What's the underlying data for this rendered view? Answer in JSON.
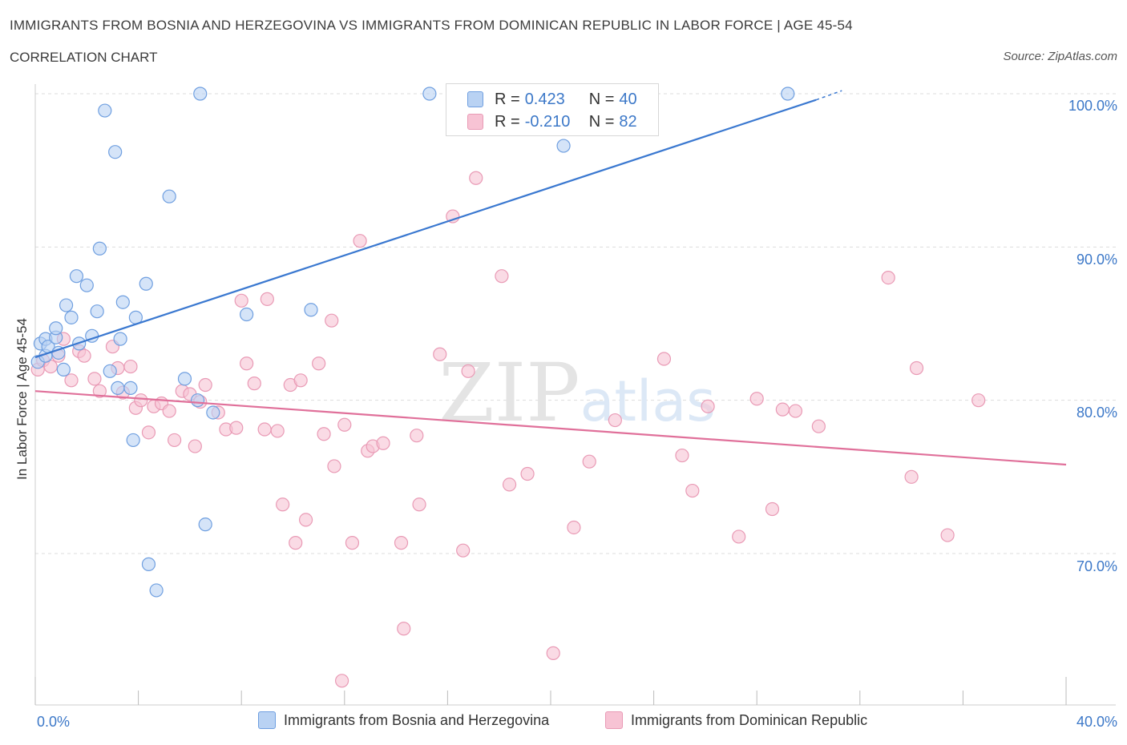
{
  "header": {
    "title": "IMMIGRANTS FROM BOSNIA AND HERZEGOVINA VS IMMIGRANTS FROM DOMINICAN REPUBLIC IN LABOR FORCE | AGE 45-54",
    "subtitle": "CORRELATION CHART",
    "source": "Source: ZipAtlas.com"
  },
  "watermark": "ZIPatlas",
  "legend_top": {
    "rows": [
      {
        "r_label": "R =",
        "r_value": "0.423",
        "n_label": "N =",
        "n_value": "40"
      },
      {
        "r_label": "R =",
        "r_value": "-0.210",
        "n_label": "N =",
        "n_value": "82"
      }
    ]
  },
  "legend_bottom": {
    "series1": "Immigrants from Bosnia and Herzegovina",
    "series2": "Immigrants from Dominican Republic"
  },
  "axis": {
    "ylabel": "In Labor Force | Age 45-54",
    "x_min_label": "0.0%",
    "x_max_label": "40.0%",
    "y_ticks": [
      "100.0%",
      "90.0%",
      "80.0%",
      "70.0%"
    ]
  },
  "colors": {
    "blue_fill": "#b9d2f3",
    "blue_stroke": "#6f9fe0",
    "blue_line": "#3a78d0",
    "pink_fill": "#f7c3d4",
    "pink_stroke": "#e99ab5",
    "pink_line": "#e0709a",
    "tick_text": "#3c78c8"
  },
  "chart_data": {
    "type": "scatter",
    "title": "IMMIGRANTS FROM BOSNIA AND HERZEGOVINA VS IMMIGRANTS FROM DOMINICAN REPUBLIC IN LABOR FORCE | AGE 45-54",
    "xlabel": "",
    "ylabel": "In Labor Force | Age 45-54",
    "xlim": [
      0,
      40
    ],
    "ylim": [
      60,
      102
    ],
    "y_gridlines": [
      70,
      80,
      90,
      100
    ],
    "series": [
      {
        "name": "Immigrants from Bosnia and Herzegovina",
        "R": 0.423,
        "N": 40,
        "trend": {
          "x": [
            0,
            30.3
          ],
          "y": [
            82.8,
            99.6
          ],
          "dashed_to": {
            "x": 31.3,
            "y": 100.2
          }
        },
        "points": [
          [
            0.1,
            82.5
          ],
          [
            0.2,
            83.7
          ],
          [
            0.4,
            84.0
          ],
          [
            0.4,
            82.9
          ],
          [
            0.5,
            83.5
          ],
          [
            0.8,
            84.1
          ],
          [
            0.8,
            84.7
          ],
          [
            0.9,
            83.1
          ],
          [
            1.1,
            82.0
          ],
          [
            1.2,
            86.2
          ],
          [
            1.4,
            85.4
          ],
          [
            1.6,
            88.1
          ],
          [
            1.7,
            83.7
          ],
          [
            2.0,
            87.5
          ],
          [
            2.2,
            84.2
          ],
          [
            2.4,
            85.8
          ],
          [
            2.5,
            89.9
          ],
          [
            2.7,
            98.9
          ],
          [
            2.9,
            81.9
          ],
          [
            3.1,
            96.2
          ],
          [
            3.2,
            80.8
          ],
          [
            3.3,
            84.0
          ],
          [
            3.4,
            86.4
          ],
          [
            3.7,
            80.8
          ],
          [
            3.8,
            77.4
          ],
          [
            3.9,
            85.4
          ],
          [
            4.3,
            87.6
          ],
          [
            4.4,
            69.3
          ],
          [
            4.7,
            67.6
          ],
          [
            5.2,
            93.3
          ],
          [
            5.8,
            81.4
          ],
          [
            6.3,
            80.0
          ],
          [
            6.4,
            100.0
          ],
          [
            6.6,
            71.9
          ],
          [
            6.9,
            79.2
          ],
          [
            8.2,
            85.6
          ],
          [
            10.7,
            85.9
          ],
          [
            15.3,
            100.0
          ],
          [
            20.5,
            96.6
          ],
          [
            29.2,
            100.0
          ]
        ]
      },
      {
        "name": "Immigrants from Dominican Republic",
        "R": -0.21,
        "N": 82,
        "trend": {
          "x": [
            0,
            40
          ],
          "y": [
            80.6,
            75.8
          ]
        },
        "points": [
          [
            0.1,
            82.0
          ],
          [
            0.3,
            82.6
          ],
          [
            0.6,
            82.2
          ],
          [
            0.9,
            82.9
          ],
          [
            1.1,
            84.0
          ],
          [
            1.4,
            81.3
          ],
          [
            1.7,
            83.2
          ],
          [
            1.9,
            82.9
          ],
          [
            2.3,
            81.4
          ],
          [
            2.5,
            80.6
          ],
          [
            3.0,
            83.5
          ],
          [
            3.2,
            82.1
          ],
          [
            3.4,
            80.5
          ],
          [
            3.7,
            82.2
          ],
          [
            3.9,
            79.5
          ],
          [
            4.1,
            80.0
          ],
          [
            4.4,
            77.9
          ],
          [
            4.6,
            79.6
          ],
          [
            4.9,
            79.8
          ],
          [
            5.2,
            79.3
          ],
          [
            5.4,
            77.4
          ],
          [
            5.7,
            80.6
          ],
          [
            6.0,
            80.4
          ],
          [
            6.2,
            77.0
          ],
          [
            6.4,
            79.9
          ],
          [
            6.6,
            81.0
          ],
          [
            7.1,
            79.2
          ],
          [
            7.4,
            78.1
          ],
          [
            7.8,
            78.2
          ],
          [
            8.0,
            86.5
          ],
          [
            8.2,
            82.4
          ],
          [
            8.5,
            81.1
          ],
          [
            8.9,
            78.1
          ],
          [
            9.0,
            86.6
          ],
          [
            9.4,
            78.0
          ],
          [
            9.6,
            73.2
          ],
          [
            9.9,
            81.0
          ],
          [
            10.1,
            70.7
          ],
          [
            10.3,
            81.3
          ],
          [
            10.5,
            72.2
          ],
          [
            11.0,
            82.4
          ],
          [
            11.2,
            77.8
          ],
          [
            11.5,
            85.2
          ],
          [
            11.6,
            75.7
          ],
          [
            11.9,
            61.7
          ],
          [
            12.0,
            78.4
          ],
          [
            12.3,
            70.7
          ],
          [
            12.6,
            90.4
          ],
          [
            12.9,
            76.7
          ],
          [
            13.1,
            77.0
          ],
          [
            13.5,
            77.2
          ],
          [
            14.2,
            70.7
          ],
          [
            14.3,
            65.1
          ],
          [
            14.8,
            77.7
          ],
          [
            14.9,
            73.2
          ],
          [
            15.7,
            83.0
          ],
          [
            16.2,
            92.0
          ],
          [
            16.6,
            70.2
          ],
          [
            16.8,
            81.9
          ],
          [
            17.1,
            94.5
          ],
          [
            18.1,
            88.1
          ],
          [
            18.4,
            74.5
          ],
          [
            19.1,
            75.2
          ],
          [
            20.1,
            63.5
          ],
          [
            20.9,
            71.7
          ],
          [
            21.5,
            76.0
          ],
          [
            22.5,
            78.7
          ],
          [
            24.4,
            82.7
          ],
          [
            25.1,
            76.4
          ],
          [
            25.5,
            74.1
          ],
          [
            26.1,
            79.6
          ],
          [
            27.3,
            71.1
          ],
          [
            28.0,
            80.1
          ],
          [
            28.6,
            72.9
          ],
          [
            29.0,
            79.4
          ],
          [
            29.5,
            79.3
          ],
          [
            30.4,
            78.3
          ],
          [
            33.1,
            88.0
          ],
          [
            34.0,
            75.0
          ],
          [
            34.2,
            82.1
          ],
          [
            35.4,
            71.2
          ],
          [
            36.6,
            80.0
          ]
        ]
      }
    ]
  }
}
